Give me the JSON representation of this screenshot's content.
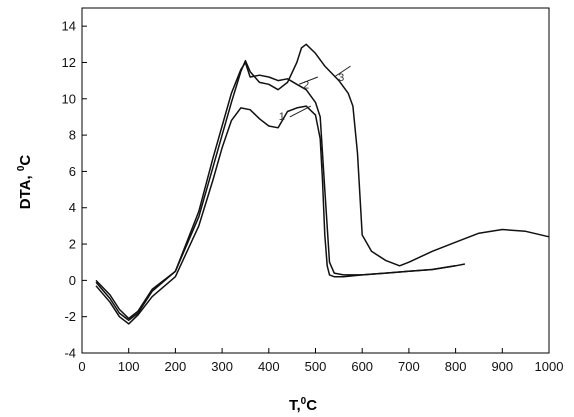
{
  "chart_data": {
    "type": "line",
    "xlabel": "T,",
    "xlabel_sup": "0",
    "xlabel_unit": "C",
    "ylabel": "DTA, ",
    "ylabel_sup": "0",
    "ylabel_unit": "C",
    "xlim": [
      0,
      1000
    ],
    "ylim": [
      -4,
      15
    ],
    "x_ticks": [
      0,
      100,
      200,
      300,
      400,
      500,
      600,
      700,
      800,
      900,
      1000
    ],
    "y_ticks": [
      -4,
      -2,
      0,
      2,
      4,
      6,
      8,
      10,
      12,
      14
    ],
    "grid": false,
    "legend": "none",
    "series": [
      {
        "name": "1",
        "color": "#111111",
        "x": [
          30,
          60,
          80,
          100,
          120,
          150,
          200,
          250,
          280,
          300,
          320,
          340,
          360,
          380,
          400,
          420,
          440,
          460,
          480,
          500,
          510,
          515,
          520,
          525,
          530,
          540,
          560,
          600,
          650,
          700,
          750,
          800
        ],
        "y": [
          -0.3,
          -1.2,
          -2.0,
          -2.4,
          -1.9,
          -0.9,
          0.2,
          3.0,
          5.5,
          7.3,
          8.8,
          9.5,
          9.4,
          8.9,
          8.5,
          8.4,
          9.3,
          9.5,
          9.6,
          9.1,
          7.8,
          5.5,
          2.5,
          0.8,
          0.3,
          0.2,
          0.2,
          0.3,
          0.4,
          0.5,
          0.6,
          0.8
        ]
      },
      {
        "name": "2",
        "color": "#111111",
        "x": [
          30,
          60,
          80,
          100,
          120,
          150,
          200,
          250,
          280,
          300,
          320,
          340,
          350,
          360,
          380,
          400,
          420,
          440,
          460,
          480,
          500,
          510,
          520,
          530,
          540,
          560,
          600,
          650,
          700,
          750,
          800,
          820
        ],
        "y": [
          -0.1,
          -1.0,
          -1.8,
          -2.2,
          -1.8,
          -0.6,
          0.5,
          3.8,
          6.7,
          8.5,
          10.3,
          11.6,
          12.0,
          11.2,
          11.3,
          11.2,
          11.0,
          11.1,
          10.8,
          10.5,
          9.8,
          9.0,
          5.0,
          1.0,
          0.4,
          0.3,
          0.3,
          0.4,
          0.5,
          0.6,
          0.8,
          0.9
        ]
      },
      {
        "name": "3",
        "color": "#111111",
        "x": [
          30,
          60,
          80,
          100,
          120,
          150,
          200,
          250,
          280,
          300,
          320,
          340,
          350,
          360,
          380,
          400,
          420,
          440,
          460,
          470,
          480,
          500,
          520,
          550,
          570,
          580,
          590,
          600,
          620,
          650,
          680,
          700,
          750,
          800,
          850,
          900,
          950,
          1000
        ],
        "y": [
          0.0,
          -0.8,
          -1.6,
          -2.1,
          -1.7,
          -0.5,
          0.5,
          3.5,
          6.2,
          8.0,
          9.8,
          11.5,
          12.1,
          11.5,
          10.9,
          10.8,
          10.5,
          10.9,
          12.0,
          12.8,
          13.0,
          12.5,
          11.8,
          11.0,
          10.3,
          9.6,
          7.0,
          2.5,
          1.6,
          1.1,
          0.8,
          1.0,
          1.6,
          2.1,
          2.6,
          2.8,
          2.7,
          2.4
        ]
      }
    ]
  }
}
